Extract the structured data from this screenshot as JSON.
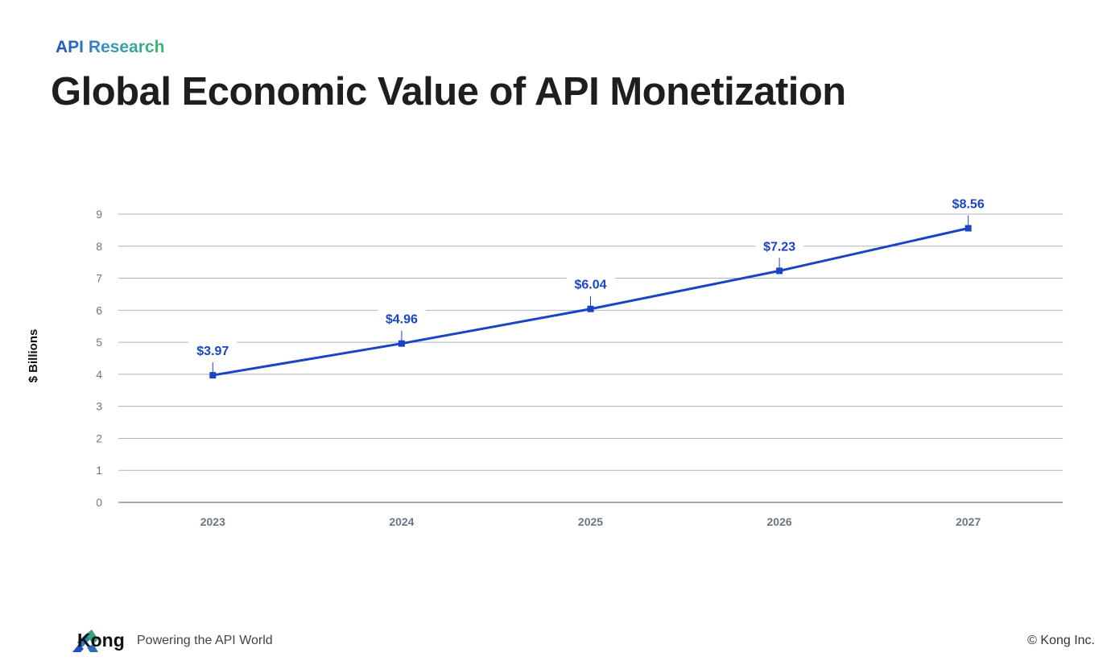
{
  "header": {
    "eyebrow": "API Research",
    "title": "Global Economic Value of API Monetization"
  },
  "chart_data": {
    "type": "line",
    "title": "Global Economic Value of API Monetization",
    "ylabel": "$ Billions",
    "xlabel": "",
    "categories": [
      "2023",
      "2024",
      "2025",
      "2026",
      "2027"
    ],
    "values": [
      3.97,
      4.96,
      6.04,
      7.23,
      8.56
    ],
    "data_labels": [
      "$3.97",
      "$4.96",
      "$6.04",
      "$7.23",
      "$8.56"
    ],
    "ylim": [
      0,
      9
    ],
    "yticks": [
      "0",
      "1",
      "2",
      "3",
      "4",
      "5",
      "6",
      "7",
      "8",
      "9"
    ],
    "grid": true,
    "legend": "none",
    "colors": {
      "line": "#1a44c4",
      "label": "#1a44c4",
      "grid": "#aab4c3",
      "tick": "#6b7785"
    }
  },
  "footer": {
    "brand": "Kong",
    "tagline": "Powering the API World",
    "copyright": "©  Kong Inc."
  }
}
